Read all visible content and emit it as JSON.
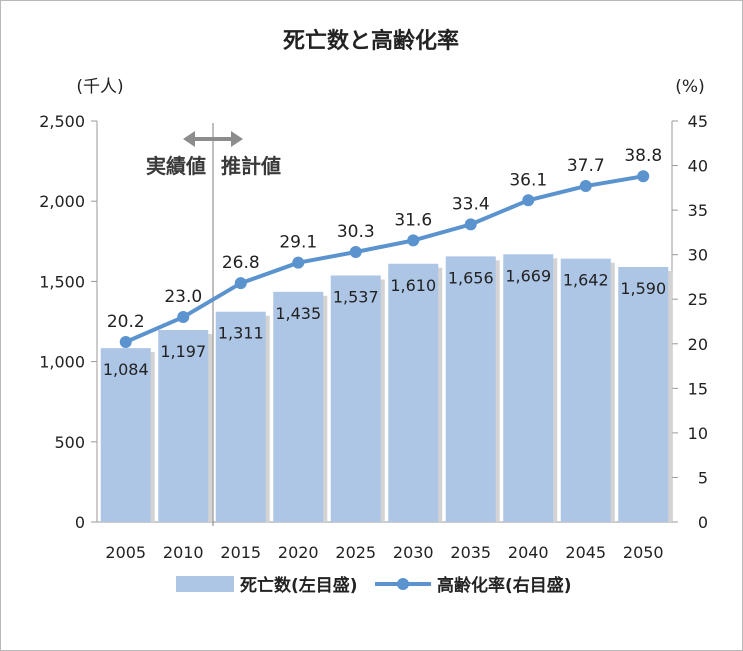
{
  "chart_data": {
    "type": "bar+line",
    "title": "死亡数と高齢化率",
    "categories": [
      "2005",
      "2010",
      "2015",
      "2020",
      "2025",
      "2030",
      "2035",
      "2040",
      "2045",
      "2050"
    ],
    "series": [
      {
        "name": "死亡数(左目盛)",
        "type": "bar",
        "axis": "left",
        "color": "#adc6e6",
        "values": [
          1084,
          1197,
          1311,
          1435,
          1537,
          1610,
          1656,
          1669,
          1642,
          1590
        ],
        "labels": [
          "1,084",
          "1,197",
          "1,311",
          "1,435",
          "1,537",
          "1,610",
          "1,656",
          "1,669",
          "1,642",
          "1,590"
        ]
      },
      {
        "name": "高齢化率(右目盛)",
        "type": "line",
        "axis": "right",
        "color": "#5b93cf",
        "values": [
          20.2,
          23.0,
          26.8,
          29.1,
          30.3,
          31.6,
          33.4,
          36.1,
          37.7,
          38.8
        ],
        "labels": [
          "20.2",
          "23.0",
          "26.8",
          "29.1",
          "30.3",
          "31.6",
          "33.4",
          "36.1",
          "37.7",
          "38.8"
        ]
      }
    ],
    "y_left": {
      "unit": "(千人)",
      "range": [
        0,
        2500
      ],
      "ticks": [
        0,
        500,
        1000,
        1500,
        2000,
        2500
      ],
      "tick_labels": [
        "0",
        "500",
        "1,000",
        "1,500",
        "2,000",
        "2,500"
      ]
    },
    "y_right": {
      "unit": "(%)",
      "range": [
        0,
        45
      ],
      "ticks": [
        0,
        5,
        10,
        15,
        20,
        25,
        30,
        35,
        40,
        45
      ],
      "tick_labels": [
        "0",
        "5",
        "10",
        "15",
        "20",
        "25",
        "30",
        "35",
        "40",
        "45"
      ]
    },
    "annotations": {
      "actual": "実績値",
      "estimate": "推計値"
    },
    "grid": false,
    "legend": "bottom"
  }
}
